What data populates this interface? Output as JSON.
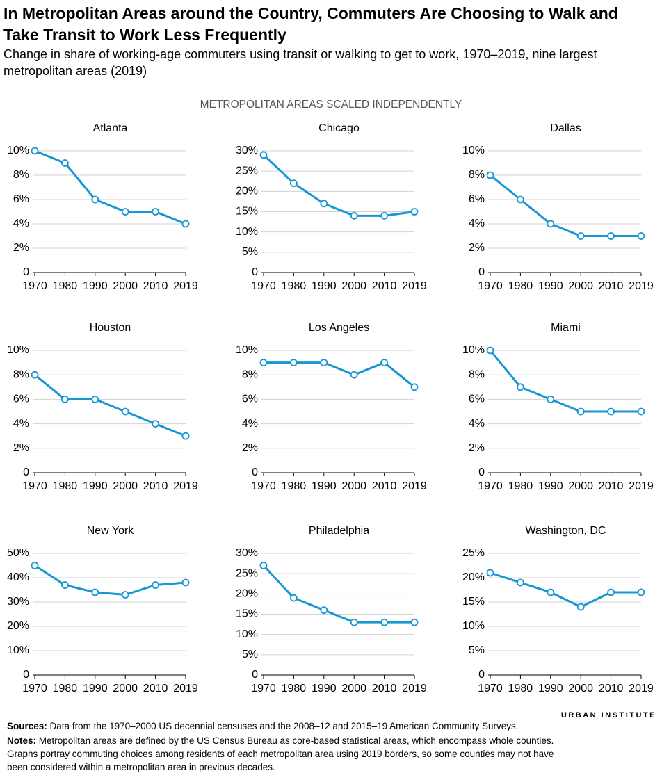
{
  "title": "In Metropolitan Areas around the Country, Commuters Are Choosing to Walk and Take Transit to Work Less Frequently",
  "subtitle": "Change in share of working-age commuters using transit or walking to get to work, 1970–2019, nine largest metropolitan areas (2019)",
  "scale_note": "METROPOLITAN AREAS SCALED INDEPENDENTLY",
  "logo": "URBAN INSTITUTE",
  "sources": {
    "label": "Sources:",
    "text": "Data from the 1970–2000 US decennial censuses and the 2008–12 and 2015–19 American Community Surveys."
  },
  "notes": {
    "label": "Notes:",
    "text": "Metropolitan areas are defined by the US Census Bureau as core-based statistical areas, which encompass whole counties. Graphs portray commuting choices among residents of each metropolitan area using 2019 borders, so some counties may not have been considered within a metropolitan area in previous decades."
  },
  "chart_data": [
    {
      "type": "line",
      "title": "Atlanta",
      "categories": [
        "1970",
        "1980",
        "1990",
        "2000",
        "2010",
        "2019"
      ],
      "values": [
        10,
        9,
        6,
        5,
        5,
        4
      ],
      "color": "#1696d2",
      "grid": true,
      "ylim": [
        0,
        10
      ],
      "yticks": [
        0,
        {
          "value": 2,
          "label": "2%"
        },
        {
          "value": 4,
          "label": "4%"
        },
        {
          "value": 6,
          "label": "6%"
        },
        {
          "value": 8,
          "label": "8%"
        },
        {
          "value": 10,
          "label": "10%"
        }
      ]
    },
    {
      "type": "line",
      "title": "Chicago",
      "categories": [
        "1970",
        "1980",
        "1990",
        "2000",
        "2010",
        "2019"
      ],
      "values": [
        29,
        22,
        17,
        14,
        14,
        15
      ],
      "color": "#1696d2",
      "grid": true,
      "ylim": [
        0,
        30
      ],
      "yticks": [
        0,
        {
          "value": 5,
          "label": "5%"
        },
        {
          "value": 10,
          "label": "10%"
        },
        {
          "value": 15,
          "label": "15%"
        },
        {
          "value": 20,
          "label": "20%"
        },
        {
          "value": 25,
          "label": "25%"
        },
        {
          "value": 30,
          "label": "30%"
        }
      ]
    },
    {
      "type": "line",
      "title": "Dallas",
      "categories": [
        "1970",
        "1980",
        "1990",
        "2000",
        "2010",
        "2019"
      ],
      "values": [
        8,
        6,
        4,
        3,
        3,
        3
      ],
      "color": "#1696d2",
      "grid": true,
      "ylim": [
        0,
        10
      ],
      "yticks": [
        0,
        {
          "value": 2,
          "label": "2%"
        },
        {
          "value": 4,
          "label": "4%"
        },
        {
          "value": 6,
          "label": "6%"
        },
        {
          "value": 8,
          "label": "8%"
        },
        {
          "value": 10,
          "label": "10%"
        }
      ]
    },
    {
      "type": "line",
      "title": "Houston",
      "categories": [
        "1970",
        "1980",
        "1990",
        "2000",
        "2010",
        "2019"
      ],
      "values": [
        8,
        6,
        6,
        5,
        4,
        3
      ],
      "color": "#1696d2",
      "grid": true,
      "ylim": [
        0,
        10
      ],
      "yticks": [
        0,
        {
          "value": 2,
          "label": "2%"
        },
        {
          "value": 4,
          "label": "4%"
        },
        {
          "value": 6,
          "label": "6%"
        },
        {
          "value": 8,
          "label": "8%"
        },
        {
          "value": 10,
          "label": "10%"
        }
      ]
    },
    {
      "type": "line",
      "title": "Los Angeles",
      "categories": [
        "1970",
        "1980",
        "1990",
        "2000",
        "2010",
        "2019"
      ],
      "values": [
        9,
        9,
        9,
        8,
        9,
        7
      ],
      "color": "#1696d2",
      "grid": true,
      "ylim": [
        0,
        10
      ],
      "yticks": [
        0,
        {
          "value": 2,
          "label": "2%"
        },
        {
          "value": 4,
          "label": "4%"
        },
        {
          "value": 6,
          "label": "6%"
        },
        {
          "value": 8,
          "label": "8%"
        },
        {
          "value": 10,
          "label": "10%"
        }
      ]
    },
    {
      "type": "line",
      "title": "Miami",
      "categories": [
        "1970",
        "1980",
        "1990",
        "2000",
        "2010",
        "2019"
      ],
      "values": [
        10,
        7,
        6,
        5,
        5,
        5
      ],
      "color": "#1696d2",
      "grid": true,
      "ylim": [
        0,
        10
      ],
      "yticks": [
        0,
        {
          "value": 2,
          "label": "2%"
        },
        {
          "value": 4,
          "label": "4%"
        },
        {
          "value": 6,
          "label": "6%"
        },
        {
          "value": 8,
          "label": "8%"
        },
        {
          "value": 10,
          "label": "10%"
        }
      ]
    },
    {
      "type": "line",
      "title": "New York",
      "categories": [
        "1970",
        "1980",
        "1990",
        "2000",
        "2010",
        "2019"
      ],
      "values": [
        45,
        37,
        34,
        33,
        37,
        38
      ],
      "color": "#1696d2",
      "grid": true,
      "ylim": [
        0,
        50
      ],
      "yticks": [
        0,
        {
          "value": 10,
          "label": "10%"
        },
        {
          "value": 20,
          "label": "20%"
        },
        {
          "value": 30,
          "label": "30%"
        },
        {
          "value": 40,
          "label": "40%"
        },
        {
          "value": 50,
          "label": "50%"
        }
      ]
    },
    {
      "type": "line",
      "title": "Philadelphia",
      "categories": [
        "1970",
        "1980",
        "1990",
        "2000",
        "2010",
        "2019"
      ],
      "values": [
        27,
        19,
        16,
        13,
        13,
        13
      ],
      "color": "#1696d2",
      "grid": true,
      "ylim": [
        0,
        30
      ],
      "yticks": [
        0,
        {
          "value": 5,
          "label": "5%"
        },
        {
          "value": 10,
          "label": "10%"
        },
        {
          "value": 15,
          "label": "15%"
        },
        {
          "value": 20,
          "label": "20%"
        },
        {
          "value": 25,
          "label": "25%"
        },
        {
          "value": 30,
          "label": "30%"
        }
      ]
    },
    {
      "type": "line",
      "title": "Washington, DC",
      "categories": [
        "1970",
        "1980",
        "1990",
        "2000",
        "2010",
        "2019"
      ],
      "values": [
        21,
        19,
        17,
        14,
        17,
        17
      ],
      "color": "#1696d2",
      "grid": true,
      "ylim": [
        0,
        25
      ],
      "yticks": [
        0,
        {
          "value": 5,
          "label": "5%"
        },
        {
          "value": 10,
          "label": "10%"
        },
        {
          "value": 15,
          "label": "15%"
        },
        {
          "value": 20,
          "label": "20%"
        },
        {
          "value": 25,
          "label": "25%"
        }
      ]
    }
  ]
}
